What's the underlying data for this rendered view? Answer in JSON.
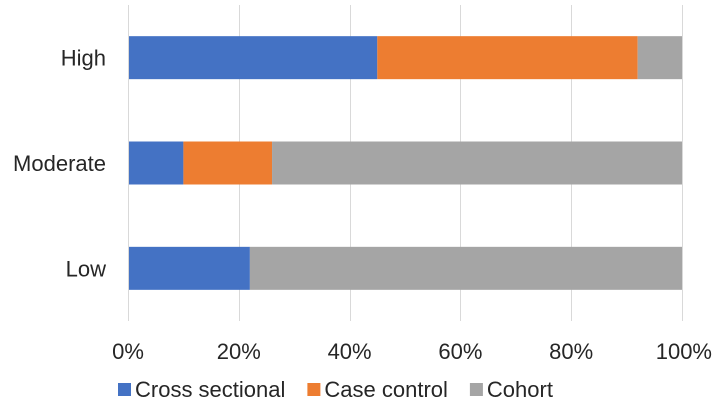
{
  "chart_data": {
    "type": "bar",
    "orientation": "horizontal",
    "stacked": "percent",
    "categories": [
      "High",
      "Moderate",
      "Low"
    ],
    "series": [
      {
        "name": "Cross sectional",
        "color": "#4472C4",
        "values": [
          45,
          10,
          22
        ]
      },
      {
        "name": "Case control",
        "color": "#ED7D31",
        "values": [
          47,
          16,
          0
        ]
      },
      {
        "name": "Cohort",
        "color": "#A5A5A5",
        "values": [
          8,
          74,
          78
        ]
      }
    ],
    "x_ticks": [
      "0%",
      "20%",
      "40%",
      "60%",
      "80%",
      "100%"
    ],
    "xlim": [
      0,
      100
    ],
    "grid": true,
    "legend": "bottom",
    "title": "",
    "xlabel": "",
    "ylabel": ""
  }
}
